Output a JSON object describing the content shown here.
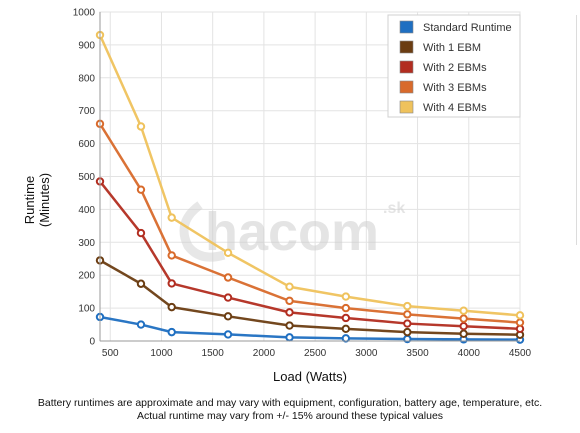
{
  "chart_data": {
    "type": "line",
    "xlabel": "Load (Watts)",
    "ylabel_lines": [
      "Runtime",
      "(Minutes)"
    ],
    "xlim": [
      400,
      4500
    ],
    "ylim": [
      0,
      1000
    ],
    "x_ticks": [
      500,
      1000,
      1500,
      2000,
      2500,
      3000,
      3500,
      4000,
      4500
    ],
    "y_ticks": [
      0,
      100,
      200,
      300,
      400,
      500,
      600,
      700,
      800,
      900,
      1000
    ],
    "grid": true,
    "legend_position": "top-right",
    "x": [
      400,
      800,
      1100,
      1650,
      2250,
      2800,
      3400,
      3950,
      4500
    ],
    "series": [
      {
        "name": "Standard Runtime",
        "color": "#1f6fc1",
        "values": [
          73,
          50,
          27,
          20,
          11,
          8,
          6,
          5,
          4
        ]
      },
      {
        "name": "With 1 EBM",
        "color": "#6b3d12",
        "values": [
          245,
          174,
          103,
          75,
          47,
          37,
          27,
          22,
          19
        ]
      },
      {
        "name": "With 2 EBMs",
        "color": "#b22d20",
        "values": [
          485,
          328,
          175,
          132,
          87,
          70,
          53,
          45,
          37
        ]
      },
      {
        "name": "With 3 EBMs",
        "color": "#d86a2b",
        "values": [
          660,
          460,
          260,
          193,
          122,
          100,
          81,
          68,
          56
        ]
      },
      {
        "name": "With 4 EBMs",
        "color": "#efc25c",
        "values": [
          930,
          652,
          375,
          268,
          165,
          135,
          106,
          92,
          78
        ]
      }
    ],
    "watermark": {
      "main": "hacom",
      "suffix": ".sk"
    }
  },
  "footnote": {
    "line1": "Battery runtimes are approximate and may vary with equipment, configuration, battery age, temperature, etc.",
    "line2": "Actual runtime may vary from +/- 15% around these typical values"
  }
}
